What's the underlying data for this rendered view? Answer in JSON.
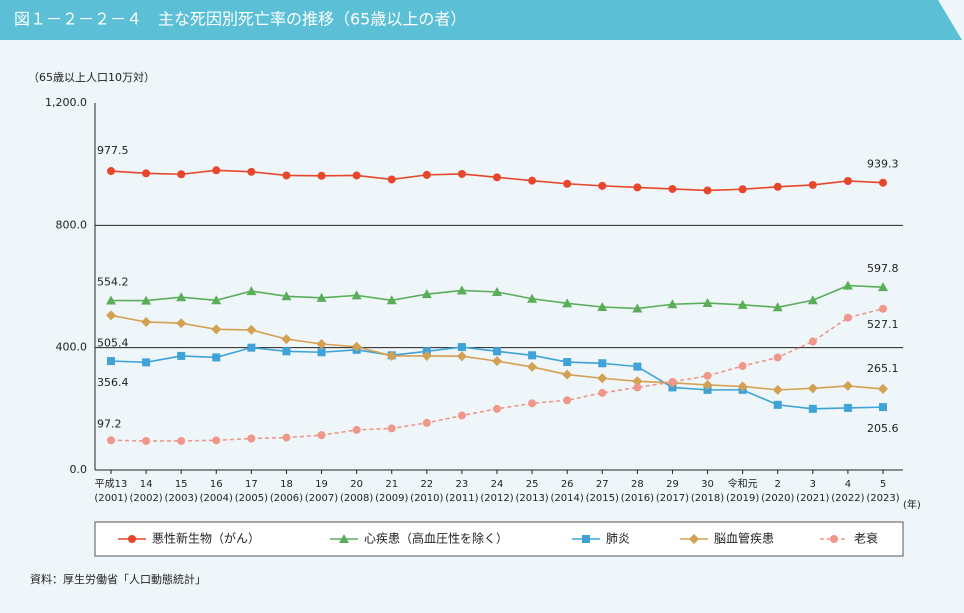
{
  "header": {
    "title": "図１－２－２－４　主な死因別死亡率の推移（65歳以上の者）"
  },
  "chart_data": {
    "type": "line",
    "y_label": "（65歳以上人口10万対）",
    "x_unit": "(年)",
    "source": "資料：厚生労働省「人口動態統計」",
    "categories": [
      "平成13",
      "14",
      "15",
      "16",
      "17",
      "18",
      "19",
      "20",
      "21",
      "22",
      "23",
      "24",
      "25",
      "26",
      "27",
      "28",
      "29",
      "30",
      "令和元",
      "2",
      "3",
      "4",
      "5"
    ],
    "category_years": [
      "(2001)",
      "(2002)",
      "(2003)",
      "(2004)",
      "(2005)",
      "(2006)",
      "(2007)",
      "(2008)",
      "(2009)",
      "(2010)",
      "(2011)",
      "(2012)",
      "(2013)",
      "(2014)",
      "(2015)",
      "(2016)",
      "(2017)",
      "(2018)",
      "(2019)",
      "(2020)",
      "(2021)",
      "(2022)",
      "(2023)"
    ],
    "ylim": [
      0,
      1200
    ],
    "yticks": [
      {
        "value": 0,
        "label": "0.0"
      },
      {
        "value": 400,
        "label": "400.0"
      },
      {
        "value": 800,
        "label": "800.0"
      },
      {
        "value": 1200,
        "label": "1,200.0"
      }
    ],
    "grid": true,
    "series": [
      {
        "name": "悪性新生物（がん）",
        "color": "#e8462a",
        "marker": "circle",
        "values": [
          977.5,
          970,
          967,
          980,
          975,
          963,
          962,
          963,
          950,
          965,
          968,
          957,
          946,
          936,
          929,
          924,
          919,
          914,
          918,
          926,
          932,
          945,
          939.3
        ]
      },
      {
        "name": "心疾患（高血圧性を除く）",
        "color": "#5aae5a",
        "marker": "triangle",
        "values": [
          554.2,
          554,
          565,
          555,
          585,
          568,
          563,
          571,
          555,
          575,
          587,
          582,
          560,
          545,
          533,
          528,
          542,
          546,
          540,
          532,
          555,
          603,
          597.8
        ]
      },
      {
        "name": "肺炎",
        "color": "#3fa3d8",
        "marker": "square",
        "values": [
          356.4,
          352,
          373,
          368,
          400,
          388,
          385,
          393,
          375,
          388,
          402,
          388,
          375,
          353,
          349,
          338,
          270,
          262,
          262,
          213,
          200,
          203,
          205.6
        ]
      },
      {
        "name": "脳血管疾患",
        "color": "#d4a052",
        "marker": "diamond",
        "values": [
          505.4,
          484,
          480,
          460,
          458,
          428,
          412,
          403,
          373,
          373,
          372,
          356,
          337,
          312,
          300,
          290,
          285,
          278,
          273,
          262,
          267,
          275,
          265.1
        ]
      },
      {
        "name": "老衰",
        "color": "#f0968a",
        "marker": "circle",
        "dashed": true,
        "values": [
          97.2,
          95,
          95,
          97,
          103,
          106,
          114,
          131,
          136,
          154,
          178,
          200,
          218,
          228,
          252,
          270,
          288,
          308,
          340,
          368,
          420,
          498,
          527.1
        ]
      }
    ]
  }
}
